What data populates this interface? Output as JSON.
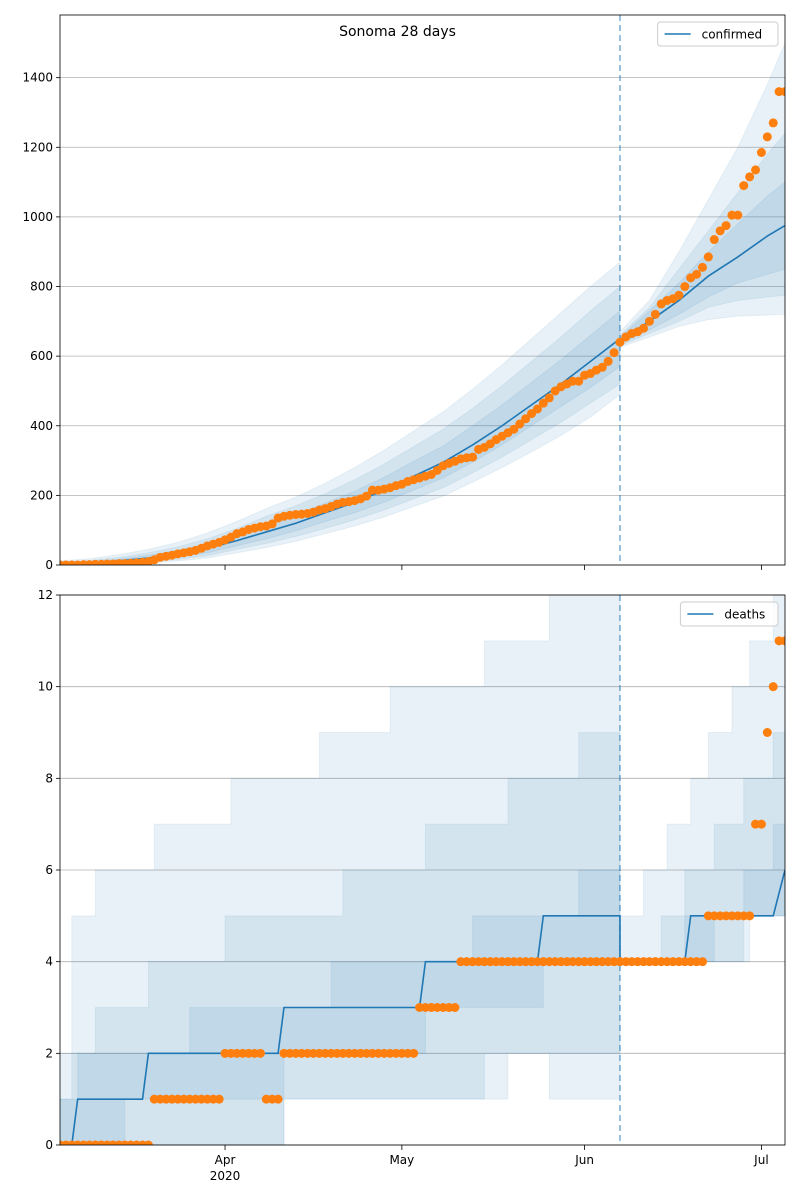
{
  "chart_data": [
    {
      "type": "line",
      "title": "Sonoma 28 days",
      "xlim": [
        0,
        123
      ],
      "xticks": [
        28,
        58,
        89,
        119
      ],
      "ylim": [
        0,
        1580
      ],
      "yticks": [
        0,
        200,
        400,
        600,
        800,
        1000,
        1200,
        1400
      ],
      "grid": true,
      "legend": "upper right",
      "vline": 95,
      "x": [
        0,
        1,
        2,
        3,
        4,
        5,
        6,
        7,
        8,
        9,
        10,
        11,
        12,
        13,
        14,
        15,
        16,
        17,
        18,
        19,
        20,
        21,
        22,
        23,
        24,
        25,
        26,
        27,
        28,
        29,
        30,
        31,
        32,
        33,
        34,
        35,
        36,
        37,
        38,
        39,
        40,
        41,
        42,
        43,
        44,
        45,
        46,
        47,
        48,
        49,
        50,
        51,
        52,
        53,
        54,
        55,
        56,
        57,
        58,
        59,
        60,
        61,
        62,
        63,
        64,
        65,
        66,
        67,
        68,
        69,
        70,
        71,
        72,
        73,
        74,
        75,
        76,
        77,
        78,
        79,
        80,
        81,
        82,
        83,
        84,
        85,
        86,
        87,
        88,
        89,
        90,
        91,
        92,
        93,
        94,
        95,
        96,
        97,
        98,
        99,
        100,
        101,
        102,
        103,
        104,
        105,
        106,
        107,
        108,
        109,
        110,
        111,
        112,
        113,
        114,
        115,
        116,
        117,
        118,
        119,
        120,
        121,
        122,
        123
      ],
      "points": {
        "color": "#ff7f0e",
        "values": [
          0,
          0,
          0,
          0,
          1,
          1,
          2,
          2,
          3,
          3,
          4,
          4,
          5,
          6,
          8,
          10,
          15,
          22,
          25,
          28,
          32,
          35,
          38,
          42,
          48,
          55,
          60,
          65,
          72,
          80,
          90,
          95,
          102,
          106,
          110,
          112,
          118,
          135,
          140,
          143,
          145,
          146,
          148,
          152,
          158,
          162,
          168,
          175,
          180,
          182,
          185,
          190,
          198,
          215,
          215,
          218,
          222,
          228,
          232,
          240,
          245,
          250,
          255,
          260,
          272,
          285,
          292,
          298,
          305,
          308,
          310,
          332,
          338,
          348,
          360,
          370,
          380,
          390,
          405,
          420,
          435,
          448,
          465,
          480,
          500,
          512,
          520,
          528,
          528,
          545,
          550,
          560,
          568,
          585,
          610,
          640,
          655,
          665,
          670,
          680,
          700,
          720,
          750,
          760,
          765,
          775,
          800,
          825,
          835,
          855,
          885,
          935,
          960,
          975,
          1005,
          1005,
          1090,
          1115,
          1135,
          1185,
          1230,
          1270,
          1360,
          1360
        ]
      },
      "series": [
        {
          "name": "confirmed",
          "color": "#1f77b4",
          "x": [
            0,
            5,
            10,
            15,
            20,
            25,
            30,
            35,
            40,
            45,
            50,
            55,
            60,
            65,
            70,
            75,
            80,
            85,
            90,
            95,
            95,
            100,
            105,
            110,
            115,
            120,
            123
          ],
          "values": [
            2,
            5,
            12,
            20,
            32,
            48,
            70,
            95,
            120,
            150,
            180,
            215,
            255,
            295,
            345,
            400,
            460,
            520,
            585,
            650,
            645,
            700,
            760,
            830,
            885,
            945,
            975
          ]
        }
      ],
      "bands": [
        {
          "color": "#1f77b4",
          "x": [
            0,
            5,
            10,
            15,
            20,
            25,
            30,
            35,
            40,
            45,
            50,
            55,
            60,
            65,
            70,
            75,
            80,
            85,
            90,
            95,
            95,
            100,
            105,
            110,
            115,
            120,
            123
          ],
          "lower": [
            0,
            0,
            2,
            6,
            12,
            20,
            35,
            50,
            68,
            90,
            112,
            138,
            168,
            198,
            238,
            280,
            325,
            372,
            425,
            490,
            625,
            655,
            685,
            705,
            715,
            718,
            720
          ],
          "upper": [
            12,
            18,
            30,
            45,
            65,
            92,
            125,
            162,
            195,
            235,
            280,
            330,
            385,
            440,
            505,
            575,
            650,
            725,
            800,
            870,
            670,
            760,
            900,
            1050,
            1200,
            1380,
            1500
          ]
        },
        {
          "color": "#1f77b4",
          "x": [
            0,
            5,
            10,
            15,
            20,
            25,
            30,
            35,
            40,
            45,
            50,
            55,
            60,
            65,
            70,
            75,
            80,
            85,
            90,
            95,
            95,
            100,
            105,
            110,
            115,
            120,
            123
          ],
          "lower": [
            0,
            1,
            4,
            9,
            16,
            27,
            45,
            62,
            82,
            105,
            130,
            158,
            190,
            222,
            265,
            310,
            360,
            410,
            465,
            520,
            630,
            665,
            700,
            740,
            760,
            770,
            775
          ],
          "upper": [
            8,
            13,
            22,
            35,
            52,
            75,
            105,
            140,
            170,
            205,
            245,
            290,
            340,
            390,
            450,
            515,
            585,
            655,
            730,
            800,
            660,
            740,
            850,
            960,
            1070,
            1180,
            1240
          ]
        },
        {
          "color": "#1f77b4",
          "x": [
            0,
            5,
            10,
            15,
            20,
            25,
            30,
            35,
            40,
            45,
            50,
            55,
            60,
            65,
            70,
            75,
            80,
            85,
            90,
            95,
            95,
            100,
            105,
            110,
            115,
            120,
            123
          ],
          "lower": [
            0,
            2,
            7,
            13,
            22,
            35,
            55,
            75,
            98,
            125,
            150,
            180,
            215,
            250,
            295,
            345,
            400,
            455,
            510,
            570,
            635,
            675,
            720,
            770,
            810,
            835,
            850
          ],
          "upper": [
            5,
            9,
            17,
            28,
            42,
            62,
            88,
            118,
            145,
            178,
            212,
            252,
            298,
            342,
            400,
            460,
            525,
            590,
            660,
            730,
            655,
            730,
            810,
            900,
            980,
            1060,
            1100
          ]
        }
      ]
    },
    {
      "type": "line",
      "xlim": [
        0,
        123
      ],
      "xticks": [
        {
          "value": 28,
          "label": "Apr\n2020"
        },
        {
          "value": 58,
          "label": "May"
        },
        {
          "value": 89,
          "label": "Jun"
        },
        {
          "value": 119,
          "label": "Jul"
        }
      ],
      "ylim": [
        0,
        12
      ],
      "yticks": [
        0,
        2,
        4,
        6,
        8,
        10,
        12
      ],
      "grid": true,
      "legend": "upper right",
      "vline": 95,
      "x": [
        0,
        1,
        2,
        3,
        4,
        5,
        6,
        7,
        8,
        9,
        10,
        11,
        12,
        13,
        14,
        15,
        16,
        17,
        18,
        19,
        20,
        21,
        22,
        23,
        24,
        25,
        26,
        27,
        28,
        29,
        30,
        31,
        32,
        33,
        34,
        35,
        36,
        37,
        38,
        39,
        40,
        41,
        42,
        43,
        44,
        45,
        46,
        47,
        48,
        49,
        50,
        51,
        52,
        53,
        54,
        55,
        56,
        57,
        58,
        59,
        60,
        61,
        62,
        63,
        64,
        65,
        66,
        67,
        68,
        69,
        70,
        71,
        72,
        73,
        74,
        75,
        76,
        77,
        78,
        79,
        80,
        81,
        82,
        83,
        84,
        85,
        86,
        87,
        88,
        89,
        90,
        91,
        92,
        93,
        94,
        95,
        96,
        97,
        98,
        99,
        100,
        101,
        102,
        103,
        104,
        105,
        106,
        107,
        108,
        109,
        110,
        111,
        112,
        113,
        114,
        115,
        116,
        117,
        118,
        119,
        120,
        121,
        122,
        123
      ],
      "points": {
        "color": "#ff7f0e",
        "values": [
          0,
          0,
          0,
          0,
          0,
          0,
          0,
          0,
          0,
          0,
          0,
          0,
          0,
          0,
          0,
          0,
          1,
          1,
          1,
          1,
          1,
          1,
          1,
          1,
          1,
          1,
          1,
          1,
          2,
          2,
          2,
          2,
          2,
          2,
          2,
          1,
          1,
          1,
          2,
          2,
          2,
          2,
          2,
          2,
          2,
          2,
          2,
          2,
          2,
          2,
          2,
          2,
          2,
          2,
          2,
          2,
          2,
          2,
          2,
          2,
          2,
          3,
          3,
          3,
          3,
          3,
          3,
          3,
          4,
          4,
          4,
          4,
          4,
          4,
          4,
          4,
          4,
          4,
          4,
          4,
          4,
          4,
          4,
          4,
          4,
          4,
          4,
          4,
          4,
          4,
          4,
          4,
          4,
          4,
          4,
          4,
          4,
          4,
          4,
          4,
          4,
          4,
          4,
          4,
          4,
          4,
          4,
          4,
          4,
          4,
          5,
          5,
          5,
          5,
          5,
          5,
          5,
          5,
          7,
          7,
          9,
          10,
          11,
          11
        ]
      },
      "series": [
        {
          "name": "deaths",
          "color": "#1f77b4",
          "x": [
            0,
            2,
            3,
            14,
            15,
            37,
            38,
            61,
            62,
            81,
            82,
            95,
            95,
            106,
            107,
            121,
            123
          ],
          "values": [
            0,
            0,
            1,
            1,
            2,
            2,
            3,
            3,
            4,
            4,
            5,
            5,
            4,
            4,
            5,
            5,
            6
          ]
        }
      ],
      "bands": [
        {
          "color": "#1f77b4",
          "x": [
            0,
            2,
            2,
            6,
            6,
            16,
            16,
            29,
            29,
            38,
            38,
            44,
            44,
            56,
            56,
            72,
            72,
            76,
            76,
            83,
            83,
            95,
            95,
            99,
            99,
            103,
            103,
            107,
            107,
            110,
            110,
            114,
            114,
            117,
            117,
            121,
            121,
            123
          ],
          "lower": [
            0,
            0,
            0,
            0,
            0,
            0,
            0,
            0,
            0,
            0,
            1,
            1,
            1,
            1,
            1,
            1,
            1,
            1,
            2,
            2,
            1,
            1,
            4,
            4,
            4,
            4,
            4,
            4,
            4,
            4,
            4,
            4,
            4,
            4,
            5,
            5,
            5,
            5
          ],
          "upper": [
            1,
            1,
            5,
            5,
            6,
            6,
            7,
            7,
            8,
            8,
            8,
            8,
            9,
            9,
            10,
            10,
            11,
            11,
            11,
            11,
            12,
            12,
            5,
            5,
            6,
            6,
            7,
            7,
            8,
            8,
            9,
            9,
            10,
            10,
            11,
            11,
            12,
            12
          ]
        },
        {
          "color": "#1f77b4",
          "x": [
            0,
            6,
            6,
            15,
            15,
            28,
            28,
            38,
            38,
            48,
            48,
            62,
            62,
            72,
            72,
            76,
            76,
            88,
            88,
            95,
            95,
            102,
            102,
            106,
            106,
            111,
            111,
            116,
            116,
            121,
            121,
            123
          ],
          "lower": [
            0,
            0,
            0,
            0,
            0,
            0,
            0,
            0,
            1,
            1,
            1,
            1,
            1,
            1,
            2,
            2,
            2,
            2,
            2,
            2,
            4,
            4,
            4,
            4,
            4,
            4,
            4,
            4,
            5,
            5,
            5,
            5
          ],
          "upper": [
            2,
            2,
            3,
            3,
            4,
            4,
            5,
            5,
            5,
            5,
            6,
            6,
            7,
            7,
            7,
            7,
            8,
            8,
            9,
            9,
            4,
            4,
            5,
            5,
            6,
            6,
            7,
            7,
            8,
            8,
            9,
            9
          ]
        },
        {
          "color": "#1f77b4",
          "x": [
            0,
            3,
            3,
            11,
            11,
            22,
            22,
            38,
            38,
            46,
            46,
            62,
            62,
            70,
            70,
            82,
            82,
            88,
            88,
            95,
            95,
            106,
            106,
            111,
            111,
            116,
            116,
            121,
            121,
            123
          ],
          "lower": [
            0,
            0,
            0,
            0,
            1,
            1,
            1,
            1,
            2,
            2,
            2,
            2,
            3,
            3,
            3,
            3,
            4,
            4,
            4,
            4,
            4,
            4,
            4,
            4,
            5,
            5,
            5,
            5,
            5,
            5
          ],
          "upper": [
            1,
            1,
            2,
            2,
            2,
            2,
            3,
            3,
            3,
            3,
            4,
            4,
            4,
            4,
            5,
            5,
            5,
            5,
            6,
            6,
            4,
            4,
            5,
            5,
            5,
            5,
            6,
            6,
            7,
            7
          ]
        }
      ]
    }
  ]
}
